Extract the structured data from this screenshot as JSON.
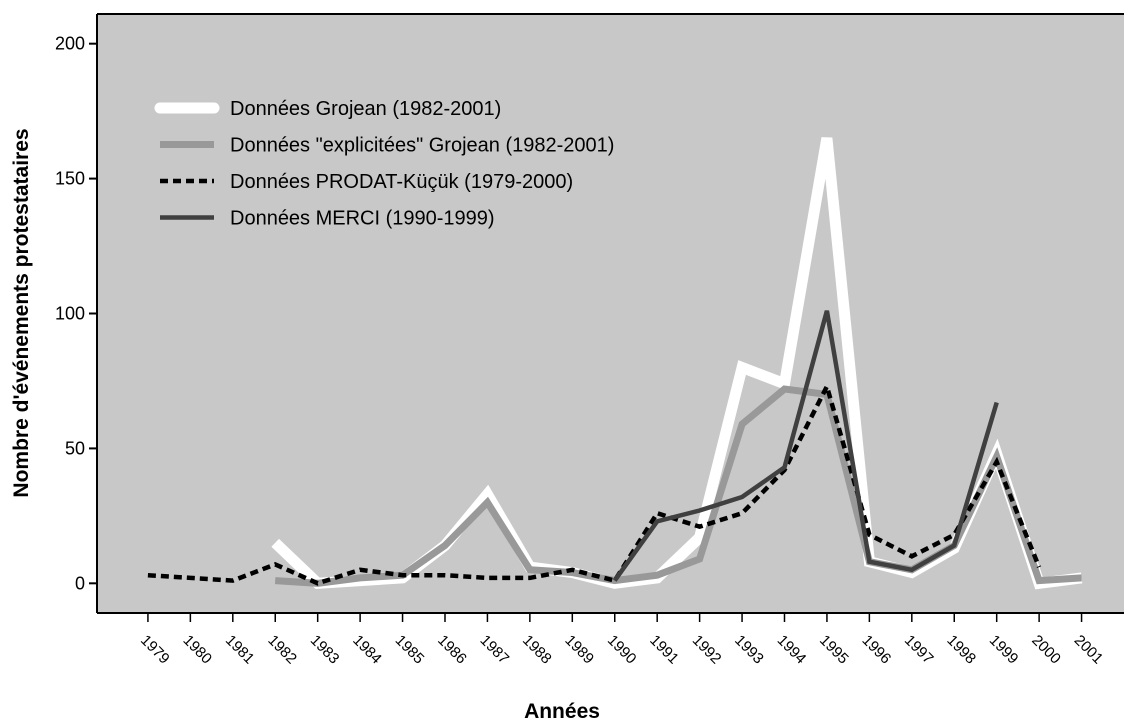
{
  "chart_data": {
    "type": "line",
    "xlabel": "Années",
    "ylabel": "Nombre d'événements protestataires",
    "x": [
      1979,
      1980,
      1981,
      1982,
      1983,
      1984,
      1985,
      1986,
      1987,
      1988,
      1989,
      1990,
      1991,
      1992,
      1993,
      1994,
      1995,
      1996,
      1997,
      1998,
      1999,
      2000,
      2001
    ],
    "xlim": [
      1977.8,
      2002
    ],
    "xticks": [
      1979,
      1980,
      1981,
      1982,
      1983,
      1984,
      1985,
      1986,
      1987,
      1988,
      1989,
      1990,
      1991,
      1992,
      1993,
      1994,
      1995,
      1996,
      1997,
      1998,
      1999,
      2000,
      2001
    ],
    "ylim": [
      -11,
      211
    ],
    "yticks": [
      0,
      50,
      100,
      150,
      200
    ],
    "background": "#c8c8c8",
    "legend": "upper left",
    "series": [
      {
        "name": "Données Grojean (1982-2001)",
        "color": "#ffffff",
        "linestyle": "solid",
        "values": [
          null,
          null,
          null,
          15,
          0,
          1,
          2,
          14,
          33,
          6,
          4,
          0,
          2,
          17,
          80,
          74,
          165,
          8,
          4,
          13,
          48,
          0,
          2
        ]
      },
      {
        "name": "Données \"explicitées\" Grojean (1982-2001)",
        "color": "#999999",
        "linestyle": "solid",
        "values": [
          null,
          null,
          null,
          1,
          0,
          2,
          3,
          14,
          30,
          5,
          4,
          1,
          3,
          9,
          59,
          72,
          70,
          8,
          5,
          14,
          47,
          1,
          2
        ]
      },
      {
        "name": "Données PRODAT-Küçük (1979-2000)",
        "color": "#000000",
        "linestyle": "dashed",
        "values": [
          3,
          2,
          1,
          7,
          0,
          5,
          3,
          3,
          2,
          2,
          5,
          1,
          26,
          21,
          26,
          42,
          73,
          18,
          10,
          18,
          45,
          6,
          null
        ]
      },
      {
        "name": "Données MERCI (1990-1999)",
        "color": "#404040",
        "linestyle": "solid",
        "values": [
          null,
          null,
          null,
          null,
          null,
          null,
          null,
          null,
          null,
          null,
          null,
          1,
          23,
          27,
          32,
          43,
          101,
          8,
          5,
          14,
          67,
          null,
          null
        ]
      }
    ]
  }
}
